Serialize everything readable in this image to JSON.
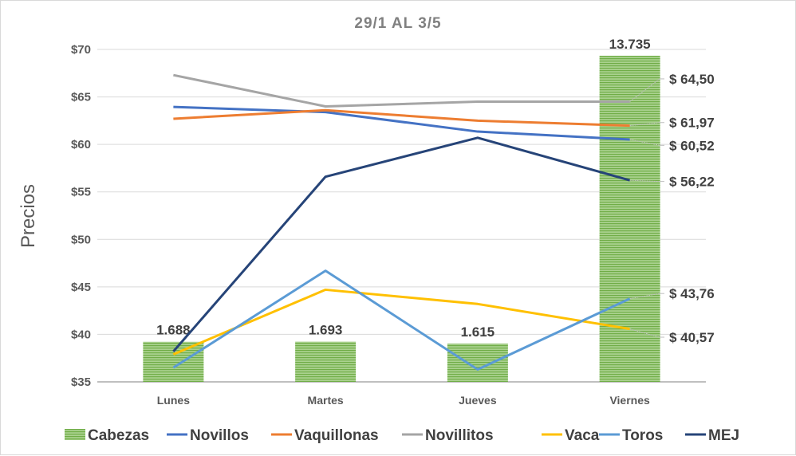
{
  "chart_data": {
    "type": "bar+line",
    "title": "29/1 AL 3/5",
    "xlabel": "",
    "ylabel": "Precios",
    "categories": [
      "Lunes",
      "Martes",
      "Jueves",
      "Viernes"
    ],
    "ylim": [
      35,
      70
    ],
    "yticks": [
      "$35",
      "$40",
      "$45",
      "$50",
      "$55",
      "$60",
      "$65",
      "$70"
    ],
    "grid": true,
    "legend_position": "bottom",
    "bar_series": {
      "name": "Cabezas",
      "values": [
        1688,
        1693,
        1615,
        13735
      ],
      "labels": [
        "1.688",
        "1.693",
        "1.615",
        "13.735"
      ],
      "secondary_ylim": [
        0,
        14000
      ],
      "color": "#70ad47"
    },
    "series": [
      {
        "name": "Novillos",
        "color": "#4472c4",
        "values": [
          63.95,
          63.4,
          61.35,
          60.52
        ]
      },
      {
        "name": "Vaquillonas",
        "color": "#ed7d31",
        "values": [
          62.7,
          63.6,
          62.5,
          61.97
        ]
      },
      {
        "name": "Novillitos",
        "color": "#a5a5a5",
        "values": [
          67.3,
          64.0,
          64.5,
          64.5
        ]
      },
      {
        "name": "Vaca",
        "color": "#ffc000",
        "values": [
          37.9,
          44.7,
          43.2,
          40.57
        ]
      },
      {
        "name": "Toros",
        "color": "#5b9bd5",
        "values": [
          36.5,
          46.7,
          36.3,
          43.76
        ]
      },
      {
        "name": "MEJ",
        "color": "#264478",
        "values": [
          38.2,
          56.6,
          60.7,
          56.22
        ]
      }
    ],
    "end_labels": [
      {
        "text": "$ 64,50",
        "series": "Novillitos",
        "label_value": 66.9
      },
      {
        "text": "$ 61,97",
        "series": "Vaquillonas",
        "label_value": 62.3
      },
      {
        "text": "$ 60,52",
        "series": "Novillos",
        "label_value": 59.9
      },
      {
        "text": "$ 56,22",
        "series": "MEJ",
        "label_value": 56.1
      },
      {
        "text": "$ 43,76",
        "series": "Toros",
        "label_value": 44.3
      },
      {
        "text": "$ 40,57",
        "series": "Vaca",
        "label_value": 39.7
      }
    ]
  }
}
